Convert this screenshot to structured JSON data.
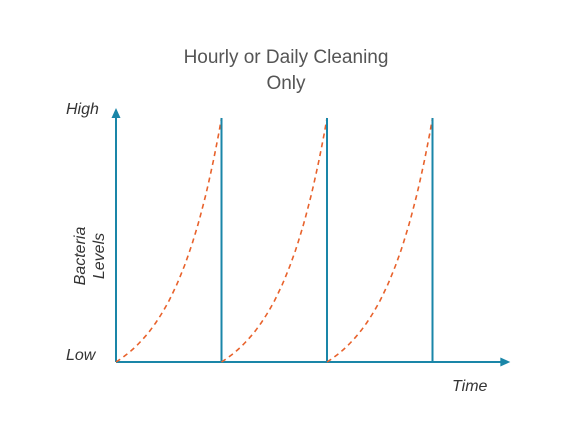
{
  "chart_data": {
    "type": "line",
    "title_line1": "Hourly or Daily Cleaning",
    "title_line2": "Only",
    "ylabel_line1": "Bacteria",
    "ylabel_line2": "Levels",
    "xlabel": "Time",
    "y_high_label": "High",
    "y_low_label": "Low",
    "xlim": [
      0,
      3.7
    ],
    "ylim": [
      0,
      1
    ],
    "cycles": 3,
    "cycle_length": 1,
    "grid": false,
    "series": [
      {
        "kind": "growth-curve",
        "style": "dashed",
        "color": "#e8622c"
      },
      {
        "kind": "cleaning-reset",
        "style": "solid",
        "color": "#1a86a8"
      }
    ],
    "axis_color": "#1a86a8"
  }
}
